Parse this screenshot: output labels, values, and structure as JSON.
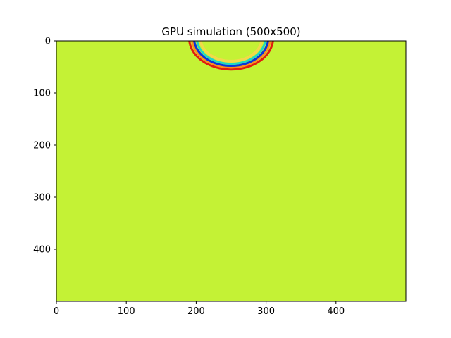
{
  "chart_data": {
    "type": "heatmap",
    "title": "GPU simulation (500x500)",
    "xlabel": "",
    "ylabel": "",
    "grid_shape": [
      500,
      500
    ],
    "xlim": [
      0,
      500
    ],
    "ylim": [
      500,
      0
    ],
    "x_ticks": [
      0,
      100,
      200,
      300,
      400
    ],
    "y_ticks": [
      0,
      100,
      200,
      300,
      400
    ],
    "grid": false,
    "colormap": "jet",
    "background_color": "#c4f235",
    "wavefront": {
      "center": [
        250,
        -5
      ],
      "rings": [
        {
          "radius": 60,
          "color": "#e11c0f"
        },
        {
          "radius": 56,
          "color": "#ff8c1e"
        },
        {
          "radius": 53,
          "color": "#0a34d8"
        },
        {
          "radius": 49,
          "color": "#1fd6c6"
        },
        {
          "radius": 44,
          "color": "#f2d94a"
        }
      ]
    }
  }
}
